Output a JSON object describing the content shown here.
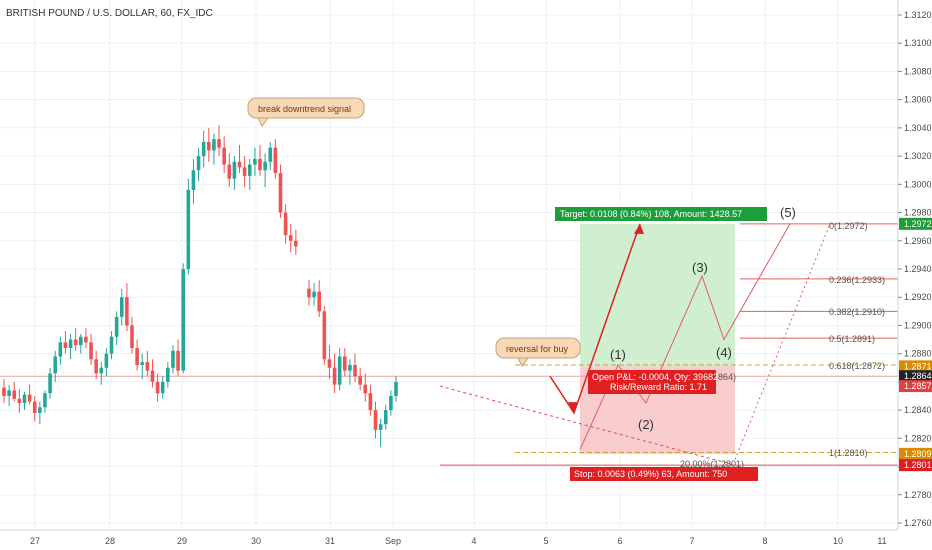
{
  "chart_title": "BRITISH POUND / U.S. DOLLAR, 60, FX_IDC",
  "chart_data": {
    "type": "candlestick",
    "ylim": [
      1.2755,
      1.3125
    ],
    "y_ticks": [
      "1.2760",
      "1.2780",
      "1.2800",
      "1.2820",
      "1.2840",
      "1.2860",
      "1.2880",
      "1.2900",
      "1.2920",
      "1.2940",
      "1.2960",
      "1.2980",
      "1.3000",
      "1.3020",
      "1.3040",
      "1.3060",
      "1.3080",
      "1.3100",
      "1.3120"
    ],
    "x_ticks": [
      "27",
      "28",
      "29",
      "30",
      "31",
      "Sep",
      "4",
      "5",
      "6",
      "7",
      "8",
      "10",
      "11"
    ],
    "price_badges": [
      {
        "text": "1.2972",
        "color": "#1e9e3a"
      },
      {
        "text": "1.2871",
        "color": "#d98a00"
      },
      {
        "text": "1.2864",
        "color": "#222222"
      },
      {
        "text": "1.2857",
        "color": "#e04040"
      },
      {
        "text": "1.2809",
        "color": "#d98a00"
      },
      {
        "text": "1.2801",
        "color": "#e02020"
      }
    ],
    "annotations": {
      "break_signal": "break downtrend signal",
      "reversal": "reversal for buy",
      "target": "Target: 0.0108 (0.84%) 108, Amount: 1428.57",
      "open_pl": "Open P&L: -0.0004, Qty: 39682",
      "open_pl_tail": "864)",
      "risk_reward": "Risk/Reward Ratio: 1.71",
      "stop": "Stop: 0.0063 (0.49%) 63, Amount: 750",
      "stop_tail": "20.00%(1.2801)"
    },
    "fib_levels": [
      {
        "label": "0(1.2972)",
        "value": 1.2972
      },
      {
        "label": "0.236(1.2933)",
        "value": 1.2933
      },
      {
        "label": "0.382(1.2910)",
        "value": 1.291
      },
      {
        "label": "0.5(1.2891)",
        "value": 1.2891
      },
      {
        "label": "0.618(1.2872)",
        "value": 1.2872
      },
      {
        "label": "1(1.2810)",
        "value": 1.281
      }
    ],
    "wave_labels": [
      "(1)",
      "(2)",
      "(3)",
      "(4)",
      "(5)"
    ],
    "colors": {
      "up": "#26a69a",
      "down": "#ef5350",
      "target_zone": "#c8ecc8",
      "stop_zone": "#f8c4c4",
      "target_badge": "#1e9e3a",
      "stop_badge": "#e02020",
      "fib": "#e06060",
      "callout": "#f7d9b7"
    },
    "candles": [
      [
        1.2856,
        1.2862,
        1.2845,
        1.285
      ],
      [
        1.285,
        1.2858,
        1.2843,
        1.2854
      ],
      [
        1.2854,
        1.286,
        1.2846,
        1.2848
      ],
      [
        1.2848,
        1.2855,
        1.2838,
        1.2845
      ],
      [
        1.2845,
        1.2853,
        1.284,
        1.2851
      ],
      [
        1.2851,
        1.2858,
        1.2844,
        1.2846
      ],
      [
        1.2846,
        1.285,
        1.2832,
        1.2838
      ],
      [
        1.2838,
        1.2846,
        1.283,
        1.2842
      ],
      [
        1.2842,
        1.2854,
        1.2838,
        1.2852
      ],
      [
        1.2852,
        1.287,
        1.2848,
        1.2866
      ],
      [
        1.2866,
        1.2882,
        1.286,
        1.2878
      ],
      [
        1.2878,
        1.2892,
        1.2872,
        1.2888
      ],
      [
        1.2888,
        1.2896,
        1.288,
        1.2884
      ],
      [
        1.2884,
        1.2894,
        1.2876,
        1.289
      ],
      [
        1.289,
        1.2898,
        1.2882,
        1.2886
      ],
      [
        1.2886,
        1.2894,
        1.288,
        1.2892
      ],
      [
        1.2892,
        1.2898,
        1.2884,
        1.2888
      ],
      [
        1.2888,
        1.2894,
        1.2872,
        1.2876
      ],
      [
        1.2876,
        1.2882,
        1.2862,
        1.2866
      ],
      [
        1.2866,
        1.2874,
        1.2858,
        1.287
      ],
      [
        1.287,
        1.2884,
        1.2864,
        1.288
      ],
      [
        1.288,
        1.2896,
        1.2876,
        1.2892
      ],
      [
        1.2892,
        1.291,
        1.2886,
        1.2906
      ],
      [
        1.2906,
        1.2926,
        1.29,
        1.292
      ],
      [
        1.292,
        1.293,
        1.2896,
        1.29
      ],
      [
        1.29,
        1.2906,
        1.288,
        1.2884
      ],
      [
        1.2884,
        1.289,
        1.2868,
        1.2872
      ],
      [
        1.2872,
        1.288,
        1.2862,
        1.2874
      ],
      [
        1.2874,
        1.2882,
        1.2864,
        1.2868
      ],
      [
        1.2868,
        1.2876,
        1.2856,
        1.286
      ],
      [
        1.286,
        1.2866,
        1.2846,
        1.2852
      ],
      [
        1.2852,
        1.2864,
        1.2848,
        1.286
      ],
      [
        1.286,
        1.2874,
        1.2856,
        1.287
      ],
      [
        1.287,
        1.2886,
        1.2866,
        1.2882
      ],
      [
        1.2882,
        1.289,
        1.2864,
        1.2868
      ],
      [
        1.2868,
        1.2944,
        1.2866,
        1.294
      ],
      [
        1.294,
        1.3004,
        1.2936,
        1.2996
      ],
      [
        1.2996,
        1.3018,
        1.2986,
        1.301
      ],
      [
        1.301,
        1.3026,
        1.3002,
        1.302
      ],
      [
        1.302,
        1.3038,
        1.3012,
        1.303
      ],
      [
        1.303,
        1.304,
        1.3016,
        1.3024
      ],
      [
        1.3024,
        1.3036,
        1.3014,
        1.3032
      ],
      [
        1.3032,
        1.3042,
        1.302,
        1.3026
      ],
      [
        1.3026,
        1.3034,
        1.3008,
        1.3014
      ],
      [
        1.3014,
        1.3022,
        1.2998,
        1.3004
      ],
      [
        1.3004,
        1.302,
        1.2996,
        1.3016
      ],
      [
        1.3016,
        1.3028,
        1.3008,
        1.3012
      ],
      [
        1.3012,
        1.302,
        1.2998,
        1.3006
      ],
      [
        1.3006,
        1.3018,
        1.2996,
        1.3014
      ],
      [
        1.3014,
        1.3026,
        1.3006,
        1.3018
      ],
      [
        1.3018,
        1.3028,
        1.3006,
        1.301
      ],
      [
        1.301,
        1.3022,
        1.2998,
        1.3016
      ],
      [
        1.3016,
        1.303,
        1.301,
        1.3026
      ],
      [
        1.3026,
        1.3032,
        1.3004,
        1.3008
      ],
      [
        1.3008,
        1.3014,
        1.2976,
        1.298
      ],
      [
        1.298,
        1.2986,
        1.2958,
        1.2964
      ],
      [
        1.2964,
        1.2972,
        1.2952,
        1.296
      ],
      [
        1.296,
        1.2968,
        1.295,
        1.2956
      ],
      [
        1.2926,
        1.2932,
        1.2914,
        1.292
      ],
      [
        1.292,
        1.293,
        1.2914,
        1.2924
      ],
      [
        1.2924,
        1.2932,
        1.2906,
        1.291
      ],
      [
        1.291,
        1.2914,
        1.2872,
        1.2876
      ],
      [
        1.2876,
        1.2886,
        1.2862,
        1.287
      ],
      [
        1.287,
        1.288,
        1.2852,
        1.2858
      ],
      [
        1.2858,
        1.2884,
        1.2854,
        1.2878
      ],
      [
        1.2878,
        1.2884,
        1.2864,
        1.2868
      ],
      [
        1.2868,
        1.2876,
        1.2858,
        1.2872
      ],
      [
        1.2872,
        1.288,
        1.286,
        1.2864
      ],
      [
        1.2864,
        1.287,
        1.2854,
        1.2858
      ],
      [
        1.2858,
        1.2866,
        1.2846,
        1.2852
      ],
      [
        1.2852,
        1.2858,
        1.2836,
        1.284
      ],
      [
        1.284,
        1.2846,
        1.282,
        1.2826
      ],
      [
        1.2826,
        1.2834,
        1.2814,
        1.283
      ],
      [
        1.283,
        1.2844,
        1.2826,
        1.284
      ],
      [
        1.284,
        1.2854,
        1.2836,
        1.285
      ],
      [
        1.285,
        1.2864,
        1.2846,
        1.286
      ]
    ]
  }
}
